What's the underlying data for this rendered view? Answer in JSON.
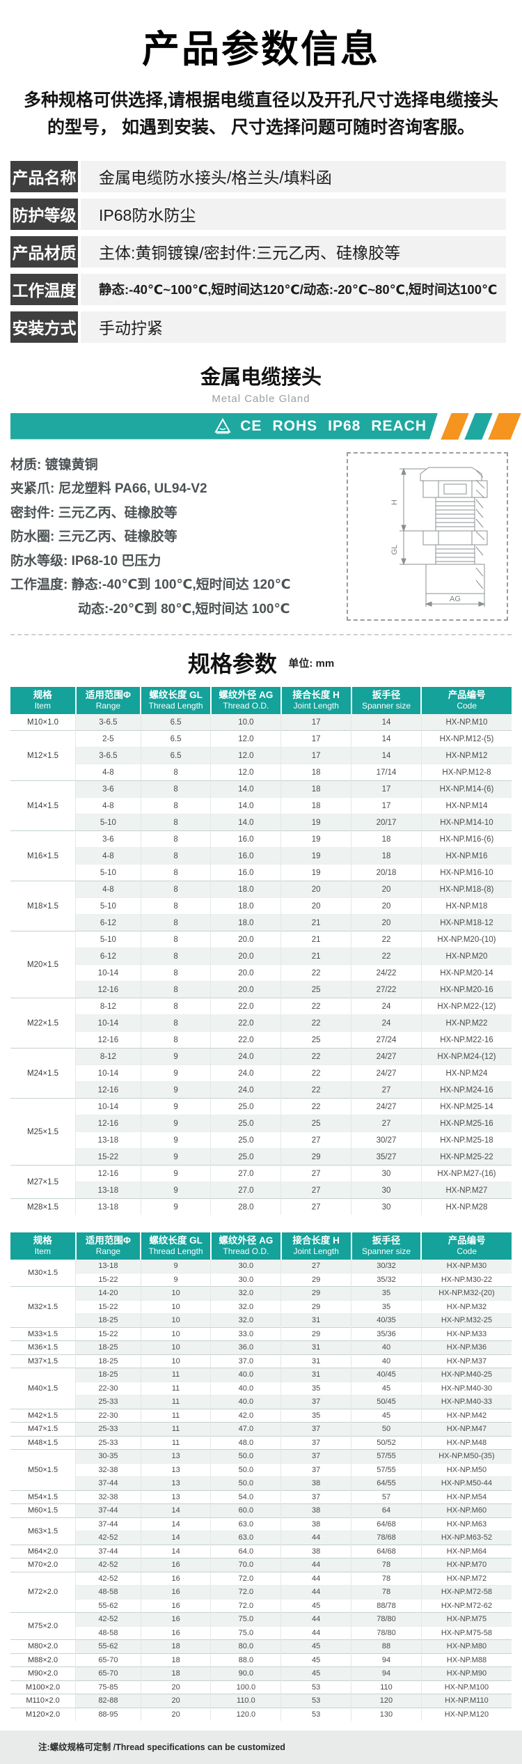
{
  "page": {
    "title": "产品参数信息",
    "subtitle_line1": "多种规格可供选择,请根据电缆直径以及开孔尺寸选择电缆接头",
    "subtitle_line2": "的型号， 如遇到安装、 尺寸选择问题可随时咨询客服。"
  },
  "info_rows": [
    {
      "label": "产品名称",
      "value": "金属电缆防水接头/格兰头/填料函"
    },
    {
      "label": "防护等级",
      "value": "IP68防水防尘"
    },
    {
      "label": "产品材质",
      "value": "主体:黄铜镀镍/密封件:三元乙丙、硅橡胶等"
    },
    {
      "label": "工作温度",
      "value": "静态:-40℃~100℃,短时间达120℃/动态:-20℃~80℃,短时间达100℃"
    },
    {
      "label": "安装方式",
      "value": "手动拧紧"
    }
  ],
  "gland": {
    "title": "金属电缆接头",
    "subtitle": "Metal Cable Gland",
    "certs": [
      "CE",
      "ROHS",
      "IP68",
      "REACH"
    ],
    "specs": [
      "材质: 镀镍黄铜",
      "夹紧爪: 尼龙塑料 PA66, UL94-V2",
      "密封件: 三元乙丙、硅橡胶等",
      "防水圈: 三元乙丙、硅橡胶等",
      "防水等级: IP68-10 巴压力",
      "工作温度: 静态:-40℃到 100℃,短时间达 120℃",
      "动态:-20℃到 80℃,短时间达 100℃"
    ],
    "drawing_labels": [
      "H",
      "GL",
      "AG"
    ]
  },
  "colors": {
    "teal": "#1FA8A0",
    "table_header_teal": "#14A29A",
    "orange": "#F5941F",
    "label_box": "#3F3F3F",
    "info_value_bg": "#F2F2F2",
    "stripe_row": "#EEF2F1"
  },
  "spec_table": {
    "title": "规格参数",
    "unit": "单位: mm",
    "headers": [
      {
        "zh": "规格",
        "en": "Item"
      },
      {
        "zh": "适用范围Φ",
        "en": "Range"
      },
      {
        "zh": "螺纹长度 GL",
        "en": "Thread Length"
      },
      {
        "zh": "螺纹外径 AG",
        "en": "Thread O.D."
      },
      {
        "zh": "接合长度 H",
        "en": "Joint Length"
      },
      {
        "zh": "扳手径",
        "en": "Spanner size"
      },
      {
        "zh": "产品编号",
        "en": "Code"
      }
    ],
    "table1_groups": [
      {
        "item": "M10×1.0",
        "rows": [
          [
            "3-6.5",
            "6.5",
            "10.0",
            "17",
            "14",
            "HX-NP.M10"
          ]
        ]
      },
      {
        "item": "M12×1.5",
        "rows": [
          [
            "2-5",
            "6.5",
            "12.0",
            "17",
            "14",
            "HX-NP.M12-(5)"
          ],
          [
            "3-6.5",
            "6.5",
            "12.0",
            "17",
            "14",
            "HX-NP.M12"
          ],
          [
            "4-8",
            "8",
            "12.0",
            "18",
            "17/14",
            "HX-NP.M12-8"
          ]
        ]
      },
      {
        "item": "M14×1.5",
        "rows": [
          [
            "3-6",
            "8",
            "14.0",
            "18",
            "17",
            "HX-NP.M14-(6)"
          ],
          [
            "4-8",
            "8",
            "14.0",
            "18",
            "17",
            "HX-NP.M14"
          ],
          [
            "5-10",
            "8",
            "14.0",
            "19",
            "20/17",
            "HX-NP.M14-10"
          ]
        ]
      },
      {
        "item": "M16×1.5",
        "rows": [
          [
            "3-6",
            "8",
            "16.0",
            "19",
            "18",
            "HX-NP.M16-(6)"
          ],
          [
            "4-8",
            "8",
            "16.0",
            "19",
            "18",
            "HX-NP.M16"
          ],
          [
            "5-10",
            "8",
            "16.0",
            "19",
            "20/18",
            "HX-NP.M16-10"
          ]
        ]
      },
      {
        "item": "M18×1.5",
        "rows": [
          [
            "4-8",
            "8",
            "18.0",
            "20",
            "20",
            "HX-NP.M18-(8)"
          ],
          [
            "5-10",
            "8",
            "18.0",
            "20",
            "20",
            "HX-NP.M18"
          ],
          [
            "6-12",
            "8",
            "18.0",
            "21",
            "20",
            "HX-NP.M18-12"
          ]
        ]
      },
      {
        "item": "M20×1.5",
        "rows": [
          [
            "5-10",
            "8",
            "20.0",
            "21",
            "22",
            "HX-NP.M20-(10)"
          ],
          [
            "6-12",
            "8",
            "20.0",
            "21",
            "22",
            "HX-NP.M20"
          ],
          [
            "10-14",
            "8",
            "20.0",
            "22",
            "24/22",
            "HX-NP.M20-14"
          ],
          [
            "12-16",
            "8",
            "20.0",
            "25",
            "27/22",
            "HX-NP.M20-16"
          ]
        ]
      },
      {
        "item": "M22×1.5",
        "rows": [
          [
            "8-12",
            "8",
            "22.0",
            "22",
            "24",
            "HX-NP.M22-(12)"
          ],
          [
            "10-14",
            "8",
            "22.0",
            "22",
            "24",
            "HX-NP.M22"
          ],
          [
            "12-16",
            "8",
            "22.0",
            "25",
            "27/24",
            "HX-NP.M22-16"
          ]
        ]
      },
      {
        "item": "M24×1.5",
        "rows": [
          [
            "8-12",
            "9",
            "24.0",
            "22",
            "24/27",
            "HX-NP.M24-(12)"
          ],
          [
            "10-14",
            "9",
            "24.0",
            "22",
            "24/27",
            "HX-NP.M24"
          ],
          [
            "12-16",
            "9",
            "24.0",
            "22",
            "27",
            "HX-NP.M24-16"
          ]
        ]
      },
      {
        "item": "M25×1.5",
        "rows": [
          [
            "10-14",
            "9",
            "25.0",
            "22",
            "24/27",
            "HX-NP.M25-14"
          ],
          [
            "12-16",
            "9",
            "25.0",
            "25",
            "27",
            "HX-NP.M25-16"
          ],
          [
            "13-18",
            "9",
            "25.0",
            "27",
            "30/27",
            "HX-NP.M25-18"
          ],
          [
            "15-22",
            "9",
            "25.0",
            "29",
            "35/27",
            "HX-NP.M25-22"
          ]
        ]
      },
      {
        "item": "M27×1.5",
        "rows": [
          [
            "12-16",
            "9",
            "27.0",
            "27",
            "30",
            "HX-NP.M27-(16)"
          ],
          [
            "13-18",
            "9",
            "27.0",
            "27",
            "30",
            "HX-NP.M27"
          ]
        ]
      },
      {
        "item": "M28×1.5",
        "rows": [
          [
            "13-18",
            "9",
            "28.0",
            "27",
            "30",
            "HX-NP.M28"
          ]
        ]
      }
    ],
    "table2_groups": [
      {
        "item": "M30×1.5",
        "rows": [
          [
            "13-18",
            "9",
            "30.0",
            "27",
            "30/32",
            "HX-NP.M30"
          ],
          [
            "15-22",
            "9",
            "30.0",
            "29",
            "35/32",
            "HX-NP.M30-22"
          ]
        ]
      },
      {
        "item": "M32×1.5",
        "rows": [
          [
            "14-20",
            "10",
            "32.0",
            "29",
            "35",
            "HX-NP.M32-(20)"
          ],
          [
            "15-22",
            "10",
            "32.0",
            "29",
            "35",
            "HX-NP.M32"
          ],
          [
            "18-25",
            "10",
            "32.0",
            "31",
            "40/35",
            "HX-NP.M32-25"
          ]
        ]
      },
      {
        "item": "M33×1.5",
        "rows": [
          [
            "15-22",
            "10",
            "33.0",
            "29",
            "35/36",
            "HX-NP.M33"
          ]
        ]
      },
      {
        "item": "M36×1.5",
        "rows": [
          [
            "18-25",
            "10",
            "36.0",
            "31",
            "40",
            "HX-NP.M36"
          ]
        ]
      },
      {
        "item": "M37×1.5",
        "rows": [
          [
            "18-25",
            "10",
            "37.0",
            "31",
            "40",
            "HX-NP.M37"
          ]
        ]
      },
      {
        "item": "M40×1.5",
        "rows": [
          [
            "18-25",
            "11",
            "40.0",
            "31",
            "40/45",
            "HX-NP.M40-25"
          ],
          [
            "22-30",
            "11",
            "40.0",
            "35",
            "45",
            "HX-NP.M40-30"
          ],
          [
            "25-33",
            "11",
            "40.0",
            "37",
            "50/45",
            "HX-NP.M40-33"
          ]
        ]
      },
      {
        "item": "M42×1.5",
        "rows": [
          [
            "22-30",
            "11",
            "42.0",
            "35",
            "45",
            "HX-NP.M42"
          ]
        ]
      },
      {
        "item": "M47×1.5",
        "rows": [
          [
            "25-33",
            "11",
            "47.0",
            "37",
            "50",
            "HX-NP.M47"
          ]
        ]
      },
      {
        "item": "M48×1.5",
        "rows": [
          [
            "25-33",
            "11",
            "48.0",
            "37",
            "50/52",
            "HX-NP.M48"
          ]
        ]
      },
      {
        "item": "M50×1.5",
        "rows": [
          [
            "30-35",
            "13",
            "50.0",
            "37",
            "57/55",
            "HX-NP.M50-(35)"
          ],
          [
            "32-38",
            "13",
            "50.0",
            "37",
            "57/55",
            "HX-NP.M50"
          ],
          [
            "37-44",
            "13",
            "50.0",
            "38",
            "64/55",
            "HX-NP.M50-44"
          ]
        ]
      },
      {
        "item": "M54×1.5",
        "rows": [
          [
            "32-38",
            "13",
            "54.0",
            "37",
            "57",
            "HX-NP.M54"
          ]
        ]
      },
      {
        "item": "M60×1.5",
        "rows": [
          [
            "37-44",
            "14",
            "60.0",
            "38",
            "64",
            "HX-NP.M60"
          ]
        ]
      },
      {
        "item": "M63×1.5",
        "rows": [
          [
            "37-44",
            "14",
            "63.0",
            "38",
            "64/68",
            "HX-NP.M63"
          ],
          [
            "42-52",
            "14",
            "63.0",
            "44",
            "78/68",
            "HX-NP.M63-52"
          ]
        ]
      },
      {
        "item": "M64×2.0",
        "rows": [
          [
            "37-44",
            "14",
            "64.0",
            "38",
            "64/68",
            "HX-NP.M64"
          ]
        ]
      },
      {
        "item": "M70×2.0",
        "rows": [
          [
            "42-52",
            "16",
            "70.0",
            "44",
            "78",
            "HX-NP.M70"
          ]
        ]
      },
      {
        "item": "M72×2.0",
        "rows": [
          [
            "42-52",
            "16",
            "72.0",
            "44",
            "78",
            "HX-NP.M72"
          ],
          [
            "48-58",
            "16",
            "72.0",
            "44",
            "78",
            "HX-NP.M72-58"
          ],
          [
            "55-62",
            "16",
            "72.0",
            "45",
            "88/78",
            "HX-NP.M72-62"
          ]
        ]
      },
      {
        "item": "M75×2.0",
        "rows": [
          [
            "42-52",
            "16",
            "75.0",
            "44",
            "78/80",
            "HX-NP.M75"
          ],
          [
            "48-58",
            "16",
            "75.0",
            "44",
            "78/80",
            "HX-NP.M75-58"
          ]
        ]
      },
      {
        "item": "M80×2.0",
        "rows": [
          [
            "55-62",
            "18",
            "80.0",
            "45",
            "88",
            "HX-NP.M80"
          ]
        ]
      },
      {
        "item": "M88×2.0",
        "rows": [
          [
            "65-70",
            "18",
            "88.0",
            "45",
            "94",
            "HX-NP.M88"
          ]
        ]
      },
      {
        "item": "M90×2.0",
        "rows": [
          [
            "65-70",
            "18",
            "90.0",
            "45",
            "94",
            "HX-NP.M90"
          ]
        ]
      },
      {
        "item": "M100×2.0",
        "rows": [
          [
            "75-85",
            "20",
            "100.0",
            "53",
            "110",
            "HX-NP.M100"
          ]
        ]
      },
      {
        "item": "M110×2.0",
        "rows": [
          [
            "82-88",
            "20",
            "110.0",
            "53",
            "120",
            "HX-NP.M110"
          ]
        ]
      },
      {
        "item": "M120×2.0",
        "rows": [
          [
            "88-95",
            "20",
            "120.0",
            "53",
            "130",
            "HX-NP.M120"
          ]
        ]
      }
    ]
  },
  "footer_note": "注:螺纹规格可定制 /Thread specifications can be customized"
}
